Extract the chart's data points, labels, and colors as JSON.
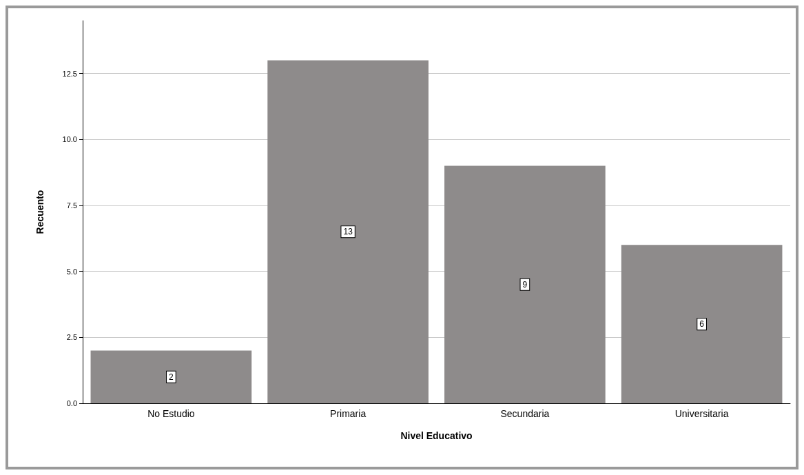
{
  "chart_data": {
    "type": "bar",
    "xlabel": "Nivel Educativo",
    "ylabel": "Recuento",
    "categories": [
      "No Estudio",
      "Primaria",
      "Secundaria",
      "Universitaria"
    ],
    "values": [
      2,
      13,
      9,
      6
    ],
    "color": "#8e8b8b",
    "ylim": [
      0,
      14.5
    ],
    "yticks": [
      {
        "value": 0,
        "label": "0.0"
      },
      {
        "value": 2.5,
        "label": "2.5"
      },
      {
        "value": 5,
        "label": "5.0"
      },
      {
        "value": 7.5,
        "label": "7.5"
      },
      {
        "value": 10,
        "label": "10.0"
      },
      {
        "value": 12.5,
        "label": "12.5"
      }
    ],
    "grid": "y",
    "data_labels": true
  }
}
